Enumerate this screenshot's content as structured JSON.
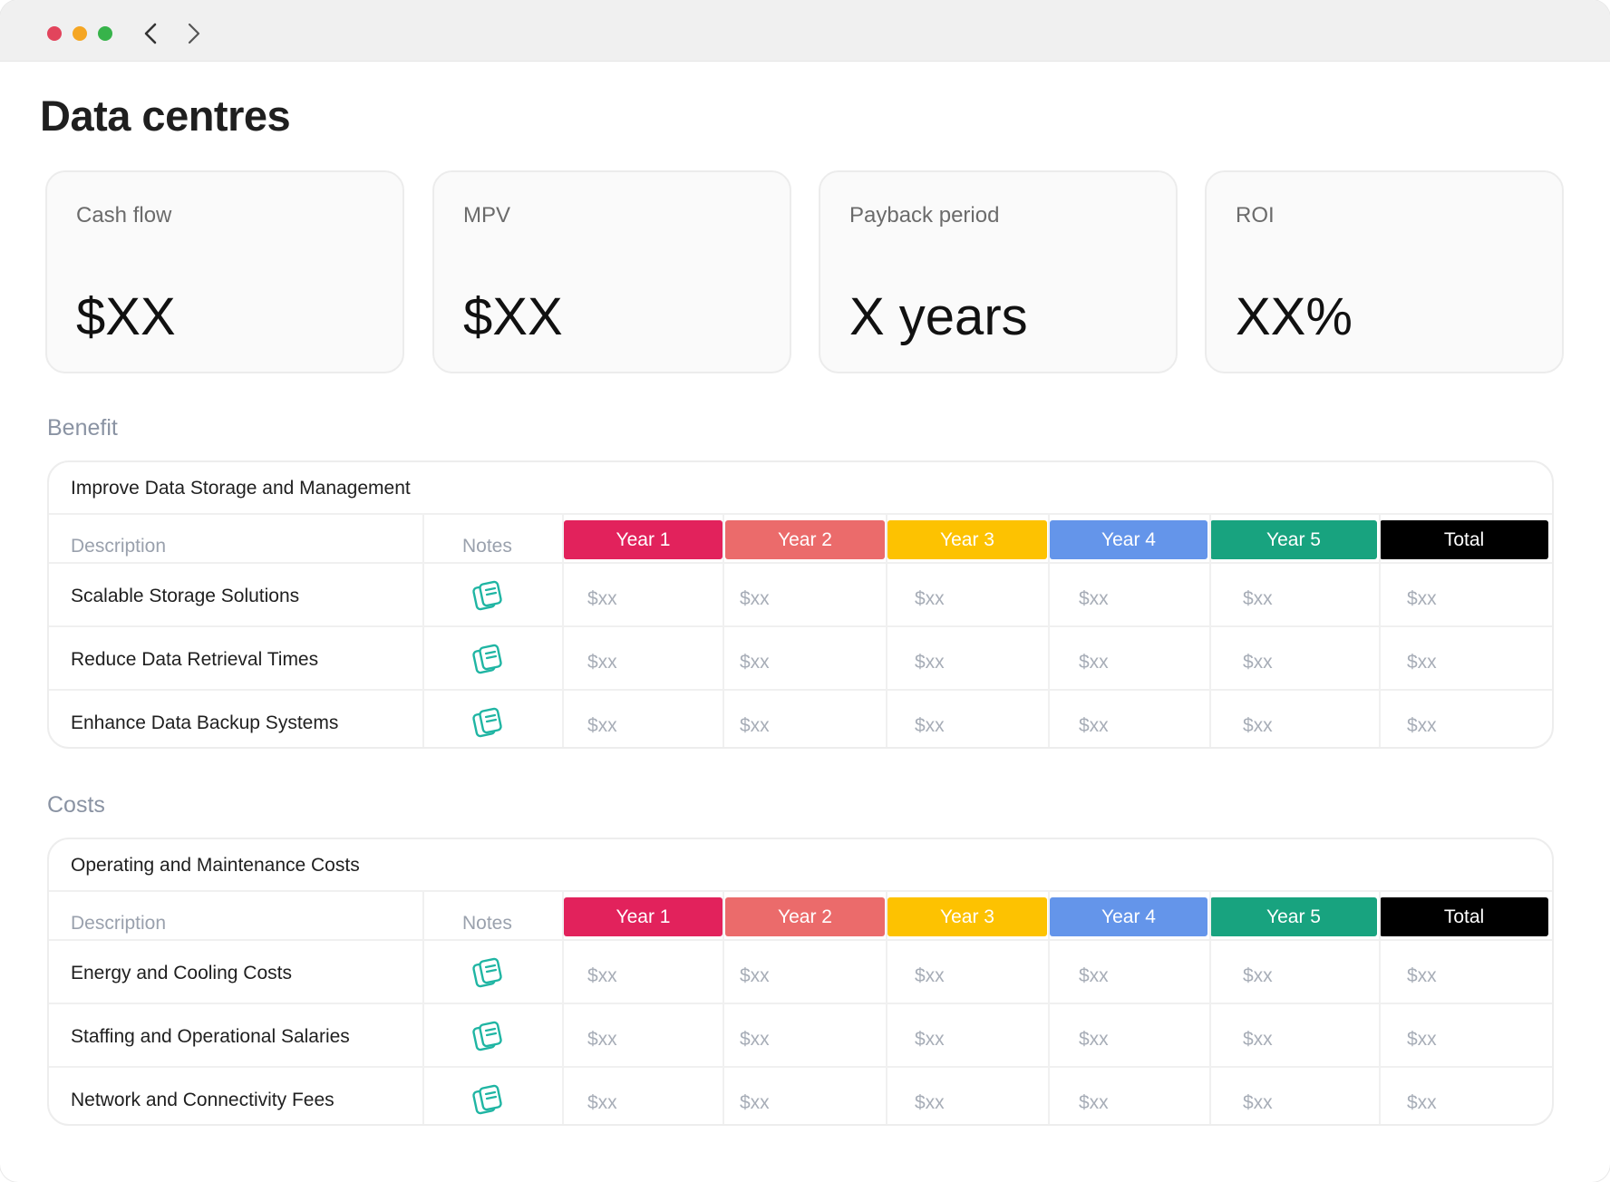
{
  "page": {
    "title": "Data centres"
  },
  "kpis": [
    {
      "label": "Cash flow",
      "value": "$XX"
    },
    {
      "label": "MPV",
      "value": "$XX"
    },
    {
      "label": "Payback period",
      "value": "X years"
    },
    {
      "label": "ROI",
      "value": "XX%"
    }
  ],
  "columns": {
    "description": "Description",
    "notes": "Notes",
    "years": [
      "Year 1",
      "Year 2",
      "Year 3",
      "Year 4",
      "Year 5",
      "Total"
    ],
    "year_colors": [
      "#e2225c",
      "#eb6b6b",
      "#fdc201",
      "#6495ea",
      "#18a37f",
      "#000000"
    ]
  },
  "sections": [
    {
      "label": "Benefit",
      "group_title": "Improve Data Storage and Management",
      "rows": [
        {
          "description": "Scalable Storage Solutions",
          "values": [
            "$xx",
            "$xx",
            "$xx",
            "$xx",
            "$xx",
            "$xx"
          ]
        },
        {
          "description": "Reduce Data Retrieval Times",
          "values": [
            "$xx",
            "$xx",
            "$xx",
            "$xx",
            "$xx",
            "$xx"
          ]
        },
        {
          "description": "Enhance Data Backup Systems",
          "values": [
            "$xx",
            "$xx",
            "$xx",
            "$xx",
            "$xx",
            "$xx"
          ]
        }
      ]
    },
    {
      "label": "Costs",
      "group_title": "Operating and Maintenance Costs",
      "rows": [
        {
          "description": "Energy and Cooling Costs",
          "values": [
            "$xx",
            "$xx",
            "$xx",
            "$xx",
            "$xx",
            "$xx"
          ]
        },
        {
          "description": "Staffing and Operational Salaries",
          "values": [
            "$xx",
            "$xx",
            "$xx",
            "$xx",
            "$xx",
            "$xx"
          ]
        },
        {
          "description": "Network and Connectivity Fees",
          "values": [
            "$xx",
            "$xx",
            "$xx",
            "$xx",
            "$xx",
            "$xx"
          ]
        }
      ]
    }
  ],
  "icons": {
    "back": "chevron-left-icon",
    "forward": "chevron-right-icon",
    "notes": "notes-icon"
  }
}
